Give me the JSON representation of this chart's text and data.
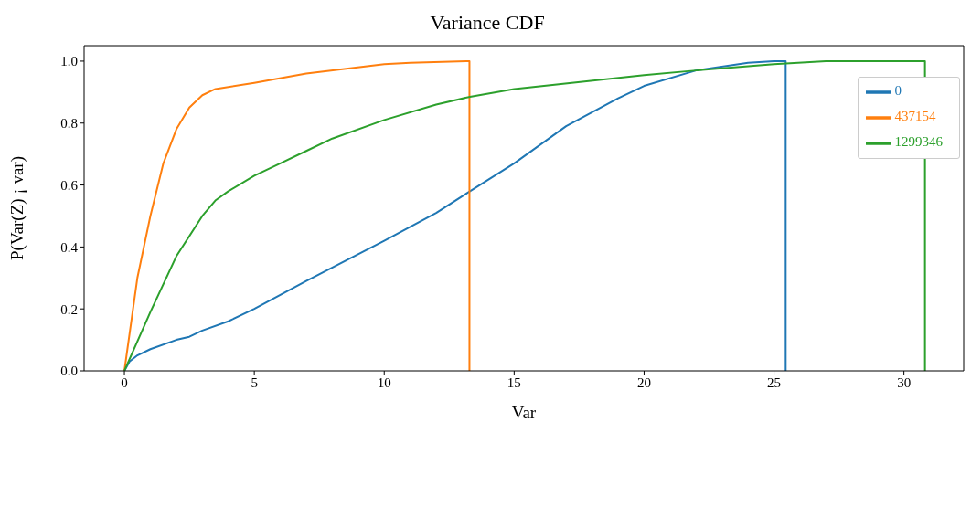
{
  "chart_data": {
    "type": "line",
    "title": "Variance CDF",
    "xlabel": "Var",
    "ylabel": "P(Var(Z) ¡ var)",
    "xlim": [
      -1.55,
      32.3
    ],
    "xticks": [
      0,
      5,
      10,
      15,
      20,
      25,
      30
    ],
    "ylim": [
      0,
      1.05
    ],
    "yticks": [
      {
        "value": 0,
        "label": "0.0"
      },
      {
        "value": 0.2,
        "label": "0.2"
      },
      {
        "value": 0.4,
        "label": "0.4"
      },
      {
        "value": 0.6,
        "label": "0.6"
      },
      {
        "value": 0.8,
        "label": "0.8"
      },
      {
        "value": 1,
        "label": "1.0"
      }
    ],
    "grid": false,
    "legend": "top right",
    "marker": "none",
    "line_style": "solid",
    "series": [
      {
        "name": "0",
        "color": "#1f77b4",
        "x": [
          0,
          0.2,
          0.5,
          1,
          2,
          2.5,
          3,
          4,
          5,
          7,
          10,
          12,
          13.3,
          15,
          17,
          19,
          20,
          22,
          24,
          25,
          25.45,
          25.45
        ],
        "values": [
          0,
          0.03,
          0.05,
          0.07,
          0.1,
          0.11,
          0.13,
          0.16,
          0.2,
          0.29,
          0.42,
          0.51,
          0.58,
          0.67,
          0.79,
          0.88,
          0.92,
          0.97,
          0.995,
          1,
          1,
          0
        ]
      },
      {
        "name": "437154",
        "color": "#ff7f0e",
        "x": [
          0,
          0.5,
          1,
          1.5,
          2,
          2.5,
          3,
          3.5,
          5,
          7,
          10,
          11,
          13.28,
          13.28
        ],
        "values": [
          0,
          0.3,
          0.5,
          0.67,
          0.78,
          0.85,
          0.89,
          0.91,
          0.93,
          0.96,
          0.99,
          0.995,
          1,
          0
        ]
      },
      {
        "name": "1299346",
        "color": "#2ca02c",
        "x": [
          0,
          1,
          2,
          3,
          3.5,
          4,
          5,
          6,
          7,
          8,
          10,
          12,
          13.3,
          15,
          20,
          22,
          25,
          27,
          30.81,
          30.81
        ],
        "values": [
          0,
          0.19,
          0.37,
          0.5,
          0.55,
          0.58,
          0.63,
          0.67,
          0.71,
          0.75,
          0.81,
          0.86,
          0.885,
          0.91,
          0.955,
          0.97,
          0.99,
          1,
          1,
          0
        ]
      }
    ]
  }
}
